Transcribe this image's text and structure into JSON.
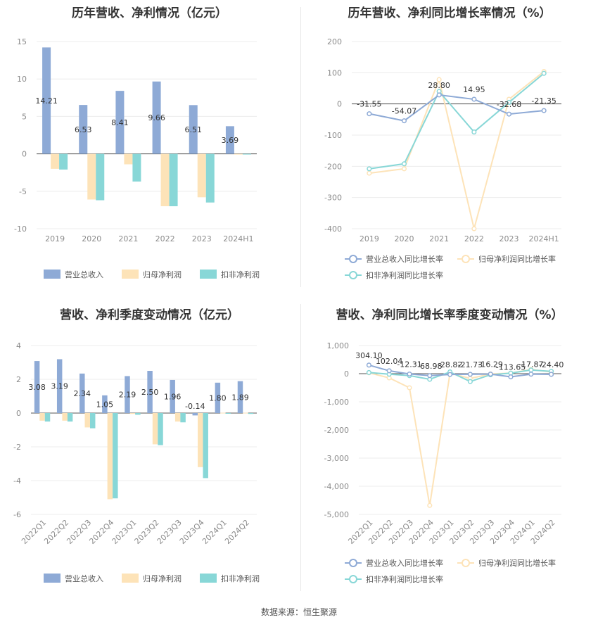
{
  "source": "数据来源：恒生聚源",
  "chart_data": [
    {
      "id": "annual_revenue_profit",
      "type": "bar",
      "title": "历年营收、净利情况（亿元）",
      "categories": [
        "2019",
        "2020",
        "2021",
        "2022",
        "2023",
        "2024H1"
      ],
      "series": [
        {
          "name": "营业总收入",
          "color": "#8eaad6",
          "values": [
            14.21,
            6.53,
            8.41,
            9.66,
            6.51,
            3.69
          ],
          "labels": [
            "14.21",
            "6.53",
            "8.41",
            "9.66",
            "6.51",
            "3.69"
          ]
        },
        {
          "name": "归母净利润",
          "color": "#fde3b8",
          "values": [
            -2.0,
            -6.1,
            -1.4,
            -7.0,
            -5.8,
            -0.05
          ]
        },
        {
          "name": "扣非净利润",
          "color": "#88d7d7",
          "values": [
            -2.1,
            -6.2,
            -3.7,
            -7.0,
            -6.5,
            -0.05
          ]
        }
      ],
      "ylim": [
        -10,
        15
      ],
      "yticks": [
        -10,
        -5,
        0,
        5,
        10,
        15
      ],
      "legend": "bottom"
    },
    {
      "id": "annual_growth",
      "type": "line",
      "title": "历年营收、净利同比增长率情况（%）",
      "categories": [
        "2019",
        "2020",
        "2021",
        "2022",
        "2023",
        "2024H1"
      ],
      "series": [
        {
          "name": "营业总收入同比增长率",
          "color": "#8eaad6",
          "values": [
            -31.55,
            -54.07,
            28.8,
            14.95,
            -32.68,
            -21.35
          ],
          "labels": [
            "-31.55",
            "-54.07",
            "28.80",
            "14.95",
            "-32.68",
            "-21.35"
          ]
        },
        {
          "name": "归母净利润同比增长率",
          "color": "#fde3b8",
          "values": [
            -222,
            -208,
            78,
            -400,
            15,
            104
          ]
        },
        {
          "name": "扣非净利润同比增长率",
          "color": "#88d7d7",
          "values": [
            -208,
            -192,
            40,
            -90,
            5,
            98
          ]
        }
      ],
      "ylim": [
        -400,
        200
      ],
      "yticks": [
        -400,
        -300,
        -200,
        -100,
        0,
        100,
        200
      ],
      "legend": "bottom"
    },
    {
      "id": "quarterly_revenue_profit",
      "type": "bar",
      "title": "营收、净利季度变动情况（亿元）",
      "categories": [
        "2022Q1",
        "2022Q2",
        "2022Q3",
        "2022Q4",
        "2023Q1",
        "2023Q2",
        "2023Q3",
        "2023Q4",
        "2024Q1",
        "2024Q2"
      ],
      "series": [
        {
          "name": "营业总收入",
          "color": "#8eaad6",
          "values": [
            3.08,
            3.19,
            2.34,
            1.05,
            2.19,
            2.5,
            1.96,
            -0.14,
            1.8,
            1.89
          ],
          "labels": [
            "3.08",
            "3.19",
            "2.34",
            "1.05",
            "2.19",
            "2.50",
            "1.96",
            "-0.14",
            "1.80",
            "1.89"
          ]
        },
        {
          "name": "归母净利润",
          "color": "#fde3b8",
          "values": [
            -0.45,
            -0.45,
            -0.85,
            -5.1,
            -0.05,
            -1.85,
            -0.5,
            -3.2,
            0.02,
            0.02
          ]
        },
        {
          "name": "扣非净利润",
          "color": "#88d7d7",
          "values": [
            -0.5,
            -0.5,
            -0.9,
            -5.05,
            -0.1,
            -1.9,
            -0.55,
            -3.85,
            -0.02,
            -0.05
          ]
        }
      ],
      "ylim": [
        -6,
        4
      ],
      "yticks": [
        -6,
        -4,
        -2,
        0,
        2,
        4
      ],
      "legend": "bottom"
    },
    {
      "id": "quarterly_growth",
      "type": "line",
      "title": "营收、净利同比增长率季度变动情况（%）",
      "categories": [
        "2022Q1",
        "2022Q2",
        "2022Q3",
        "2022Q4",
        "2023Q1",
        "2023Q2",
        "2023Q3",
        "2023Q4",
        "2024Q1",
        "2024Q2"
      ],
      "series": [
        {
          "name": "营业总收入同比增长率",
          "color": "#8eaad6",
          "values": [
            304.1,
            102.04,
            -12.31,
            -68.98,
            -28.82,
            -21.73,
            -16.29,
            -113.65,
            -17.87,
            -24.4
          ],
          "labels": [
            "304.10",
            "102.04",
            "-12.31",
            "-68.98",
            "-28.82",
            "-21.73",
            "-16.29",
            "-113.65",
            "-17.87",
            "-24.40"
          ]
        },
        {
          "name": "归母净利润同比增长率",
          "color": "#fde3b8",
          "values": [
            30,
            -150,
            -500,
            -4680,
            20,
            -170,
            -10,
            20,
            150,
            60
          ]
        },
        {
          "name": "扣非净利润同比增长率",
          "color": "#88d7d7",
          "values": [
            40,
            -20,
            -70,
            -200,
            60,
            -280,
            -40,
            20,
            130,
            80
          ]
        }
      ],
      "ylim": [
        -5000,
        1000
      ],
      "yticks": [
        -5000,
        -4000,
        -3000,
        -2000,
        -1000,
        0,
        1000
      ],
      "ytick_labels": [
        "-5,000",
        "-4,000",
        "-3,000",
        "-2,000",
        "-1,000",
        "0",
        "1,000"
      ],
      "legend": "bottom"
    }
  ]
}
